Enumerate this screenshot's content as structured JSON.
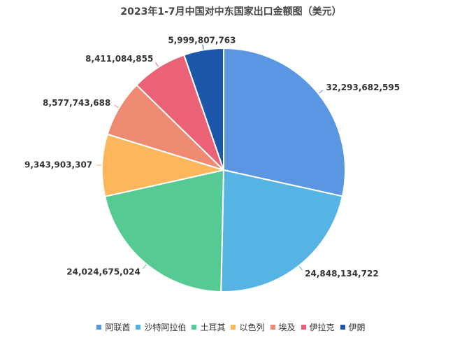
{
  "chart_data": {
    "type": "pie",
    "title": "2023年1-7月中国对中东国家出口金额图（美元）",
    "categories": [
      "阿联酋",
      "沙特阿拉伯",
      "土耳其",
      "以色列",
      "埃及",
      "伊拉克",
      "伊朗"
    ],
    "values": [
      32293682595,
      24848134722,
      24024675024,
      9343903307,
      8577743688,
      8411084855,
      5999807763
    ],
    "value_labels": [
      "32,293,682,595",
      "24,848,134,722",
      "24,024,675,024",
      "9,343,903,307",
      "8,577,743,688",
      "8,411,084,855",
      "5,999,807,763"
    ],
    "colors": [
      "#5B96E3",
      "#56B4E4",
      "#55CA93",
      "#FDB75A",
      "#EE8A72",
      "#EB6176",
      "#1D57A9"
    ],
    "start_angle": "12 o'clock",
    "direction": "clockwise",
    "legend_position": "bottom"
  }
}
